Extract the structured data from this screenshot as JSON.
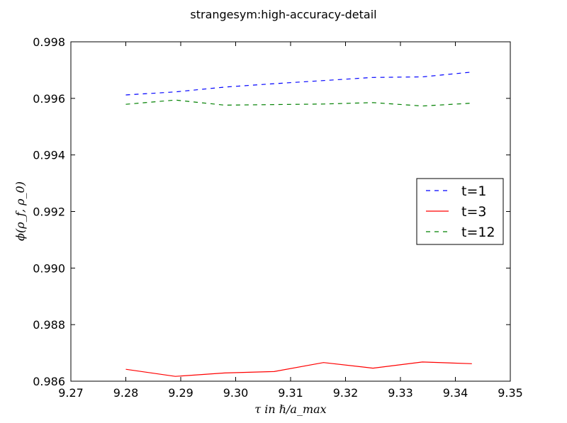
{
  "chart_data": {
    "type": "line",
    "title": "strangesym:high-accuracy-detail",
    "xlabel": "τ in ℏ/a_max",
    "ylabel": "ϕ(ρ_f, ρ_0)",
    "xlim": [
      9.27,
      9.35
    ],
    "ylim": [
      0.986,
      0.998
    ],
    "xticks": [
      "9.27",
      "9.28",
      "9.29",
      "9.30",
      "9.31",
      "9.32",
      "9.33",
      "9.34",
      "9.35"
    ],
    "yticks": [
      "0.986",
      "0.988",
      "0.990",
      "0.992",
      "0.994",
      "0.996",
      "0.998"
    ],
    "grid": false,
    "legend_position": "center-right",
    "x": [
      9.28,
      9.289,
      9.298,
      9.307,
      9.316,
      9.325,
      9.334,
      9.343
    ],
    "series": [
      {
        "name": "t=1",
        "color": "#0000ff",
        "style": "dashed",
        "values": [
          0.99612,
          0.99623,
          0.9964,
          0.99652,
          0.99663,
          0.99674,
          0.99676,
          0.99693
        ]
      },
      {
        "name": "t=3",
        "color": "#ff0000",
        "style": "solid",
        "values": [
          0.98642,
          0.98617,
          0.98629,
          0.98634,
          0.98666,
          0.98646,
          0.98668,
          0.98662
        ]
      },
      {
        "name": "t=12",
        "color": "#008000",
        "style": "dashed",
        "values": [
          0.99579,
          0.99594,
          0.99576,
          0.99578,
          0.9958,
          0.99585,
          0.99573,
          0.99583
        ]
      }
    ]
  }
}
